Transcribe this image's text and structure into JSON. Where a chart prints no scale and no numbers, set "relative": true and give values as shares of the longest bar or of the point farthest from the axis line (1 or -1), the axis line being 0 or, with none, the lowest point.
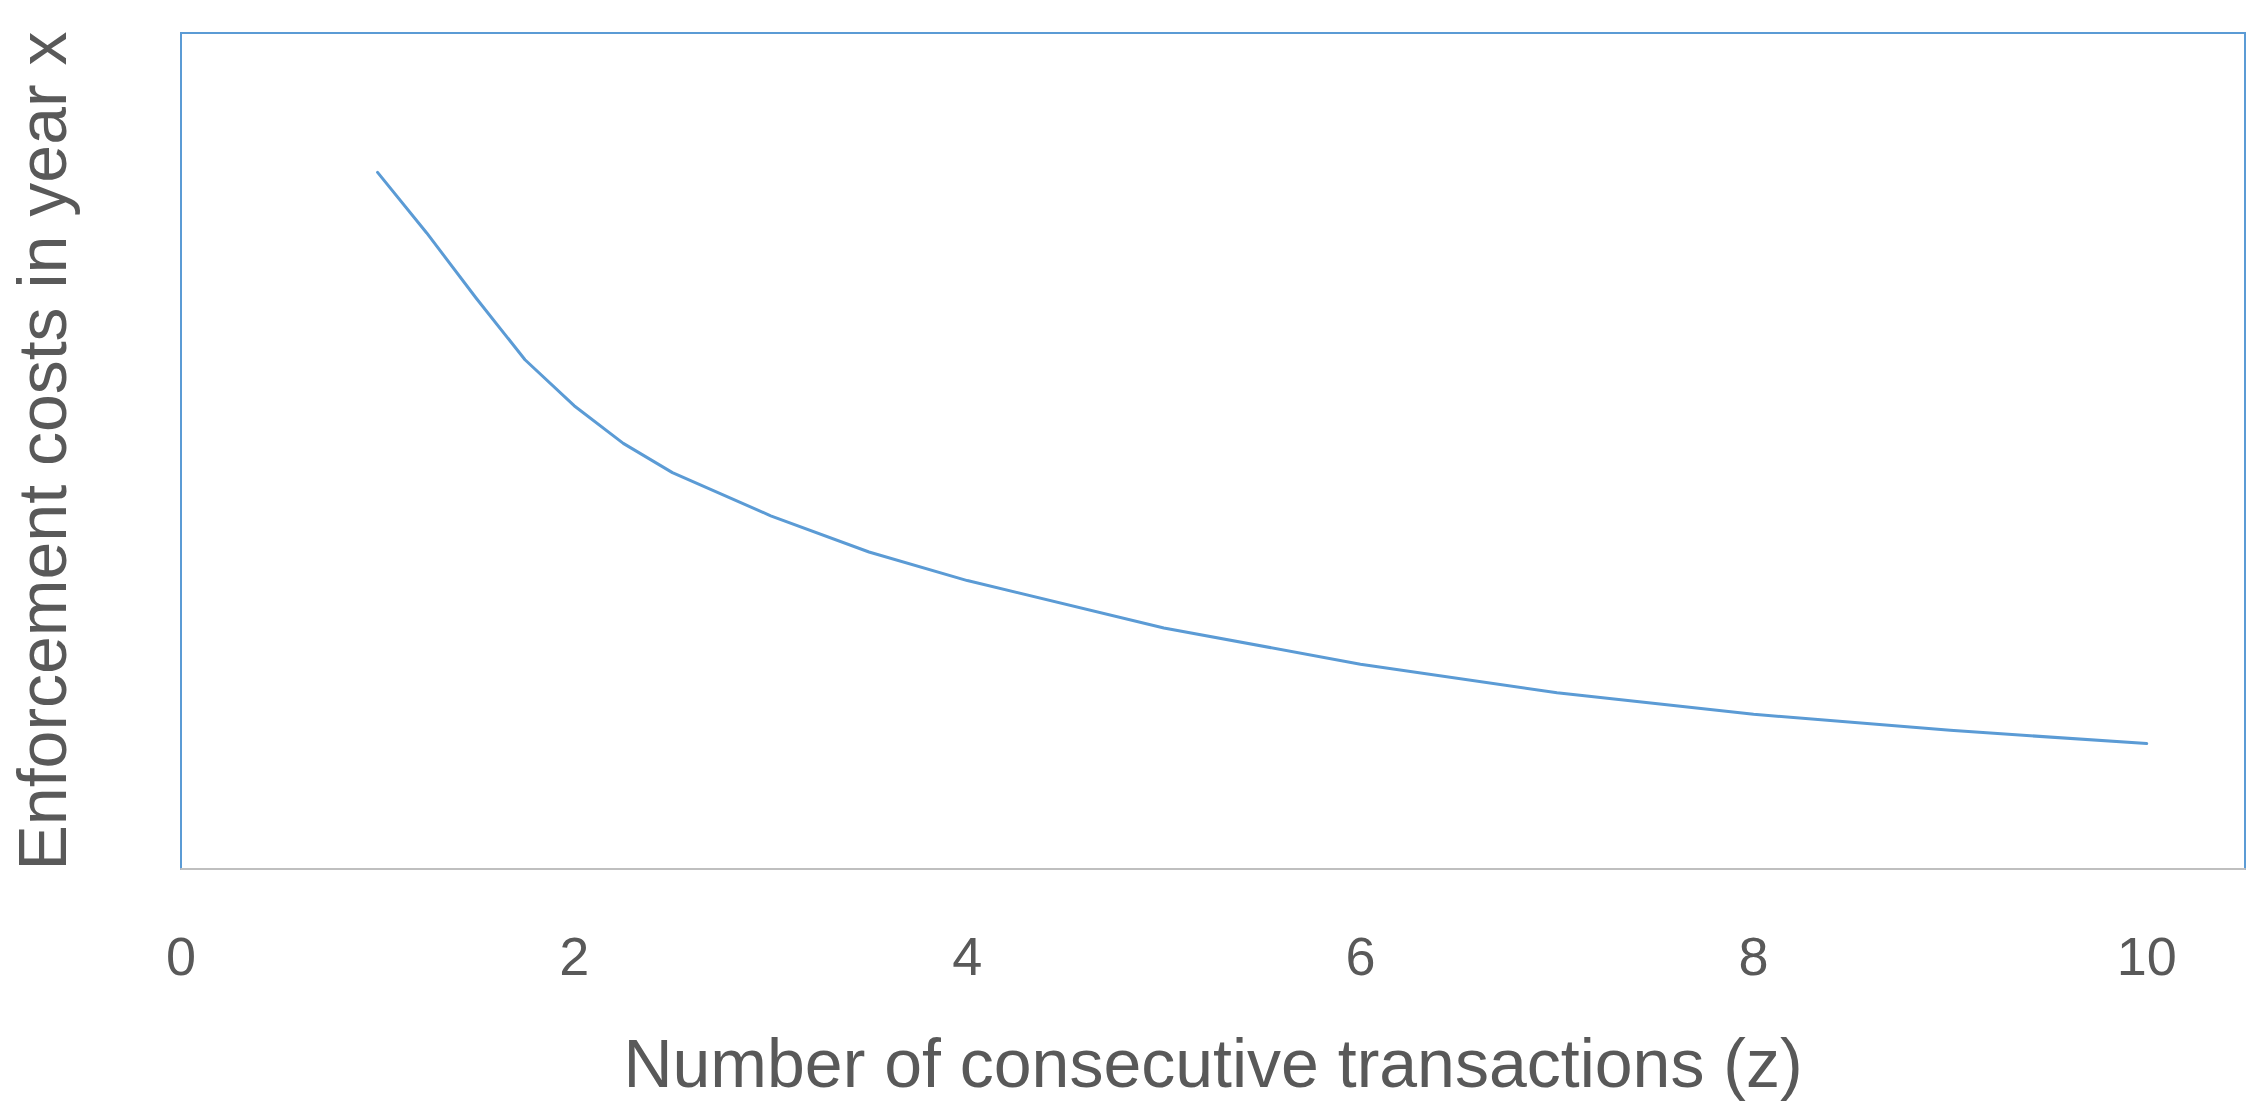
{
  "chart_data": {
    "type": "line",
    "xlabel": "Number of consecutive transactions (z)",
    "ylabel": "Enforcement costs in year x",
    "relative": true,
    "xlim": [
      0,
      10.5
    ],
    "xticks": [
      0,
      2,
      4,
      6,
      8,
      10
    ],
    "grid": false,
    "marker": "none",
    "line_style": "solid",
    "series": [
      {
        "color": "#5b9bd5",
        "x": [
          1,
          1.25,
          1.5,
          1.75,
          2,
          2.25,
          2.5,
          3,
          3.5,
          4,
          5,
          6,
          7,
          8,
          9,
          10
        ],
        "values": [
          1,
          0.913,
          0.82,
          0.731,
          0.665,
          0.611,
          0.569,
          0.507,
          0.455,
          0.414,
          0.346,
          0.294,
          0.253,
          0.222,
          0.199,
          0.18
        ]
      }
    ]
  }
}
